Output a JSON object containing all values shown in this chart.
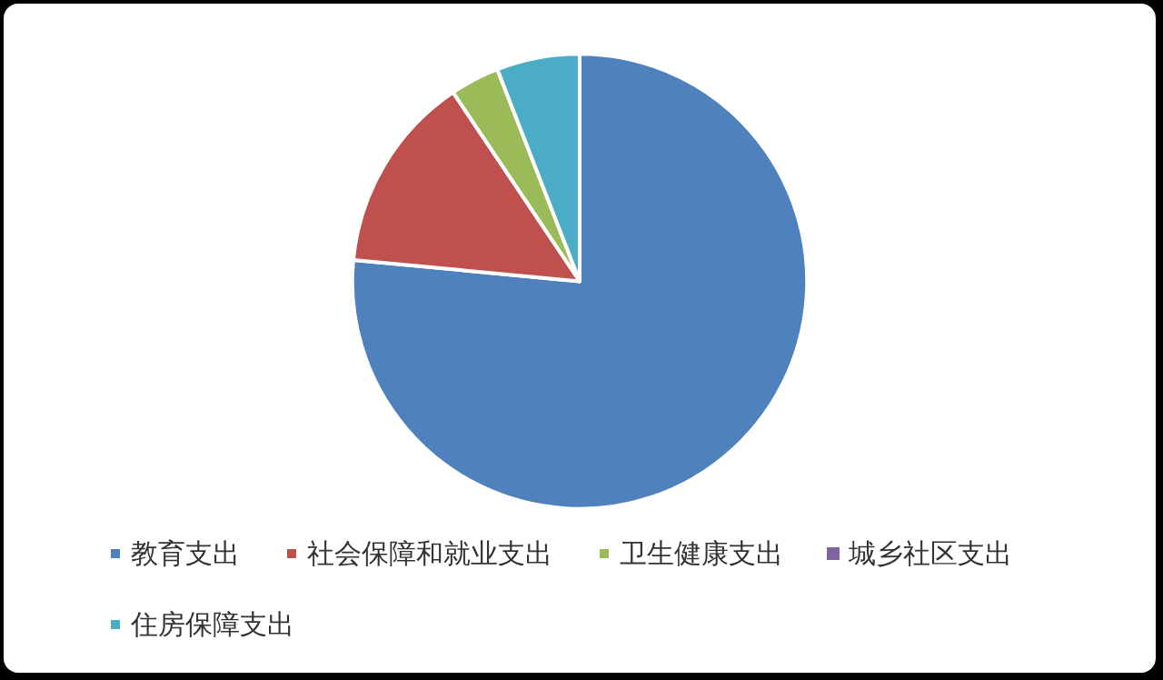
{
  "chart_data": {
    "type": "pie",
    "categories": [
      "教育支出",
      "社会保障和就业支出",
      "卫生健康支出",
      "城乡社区支出",
      "住房保障支出"
    ],
    "values": [
      76.5,
      14.1,
      3.5,
      0,
      5.9
    ],
    "colors": [
      "#4f81bd",
      "#c0504d",
      "#9bbb59",
      "#8064a2",
      "#4bacc6"
    ],
    "legend": "bottom"
  }
}
